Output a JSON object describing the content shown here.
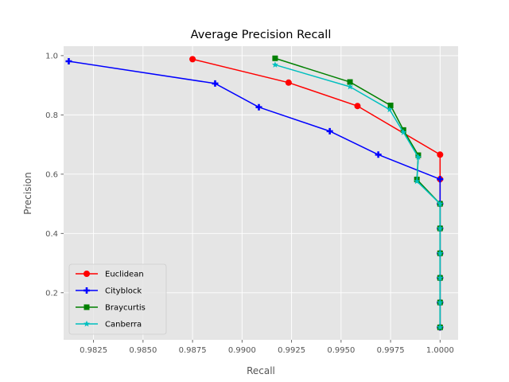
{
  "chart_data": {
    "type": "line",
    "title": "Average Precision Recall",
    "xlabel": "Recall",
    "ylabel": "Precision",
    "xlim": [
      0.98099,
      1.00091
    ],
    "ylim": [
      0.041,
      1.032
    ],
    "xticks": [
      0.9825,
      0.985,
      0.9875,
      0.99,
      0.9925,
      0.995,
      0.9975,
      1.0
    ],
    "xtick_labels": [
      "0.9825",
      "0.9850",
      "0.9875",
      "0.9900",
      "0.9925",
      "0.9950",
      "0.9975",
      "1.0000"
    ],
    "yticks": [
      0.2,
      0.4,
      0.6,
      0.8,
      1.0
    ],
    "ytick_labels": [
      "0.2",
      "0.4",
      "0.6",
      "0.8",
      "1.0"
    ],
    "grid": true,
    "legend_position": "lower-left",
    "series": [
      {
        "name": "Euclidean",
        "color": "#ff0000",
        "marker": "circle",
        "x": [
          0.9875,
          0.99235,
          0.99583,
          1.0,
          1.0,
          1.0,
          1.0,
          1.0,
          1.0,
          1.0,
          1.0
        ],
        "y": [
          0.988,
          0.909,
          0.83,
          0.666,
          0.583,
          0.5,
          0.417,
          0.333,
          0.25,
          0.167,
          0.083
        ]
      },
      {
        "name": "Cityblock",
        "color": "#0000ff",
        "marker": "plus",
        "x": [
          0.98125,
          0.98864,
          0.99085,
          0.99443,
          0.99688,
          1.0,
          1.0,
          1.0,
          1.0,
          1.0,
          1.0,
          1.0
        ],
        "y": [
          0.981,
          0.906,
          0.826,
          0.745,
          0.666,
          0.583,
          0.5,
          0.417,
          0.333,
          0.25,
          0.167,
          0.083
        ]
      },
      {
        "name": "Braycurtis",
        "color": "#008000",
        "marker": "square",
        "x": [
          0.99167,
          0.99545,
          0.9975,
          0.99815,
          0.9989,
          0.99883,
          1.0,
          1.0,
          1.0,
          1.0,
          1.0,
          1.0
        ],
        "y": [
          0.991,
          0.911,
          0.832,
          0.749,
          0.664,
          0.582,
          0.5,
          0.417,
          0.333,
          0.25,
          0.167,
          0.083
        ]
      },
      {
        "name": "Canberra",
        "color": "#00bfbf",
        "marker": "star",
        "x": [
          0.99167,
          0.99545,
          0.99745,
          0.99815,
          0.9989,
          0.99883,
          1.0,
          1.0,
          1.0,
          1.0,
          1.0,
          1.0
        ],
        "y": [
          0.969,
          0.895,
          0.818,
          0.741,
          0.657,
          0.576,
          0.5,
          0.417,
          0.333,
          0.25,
          0.167,
          0.083
        ]
      }
    ]
  }
}
